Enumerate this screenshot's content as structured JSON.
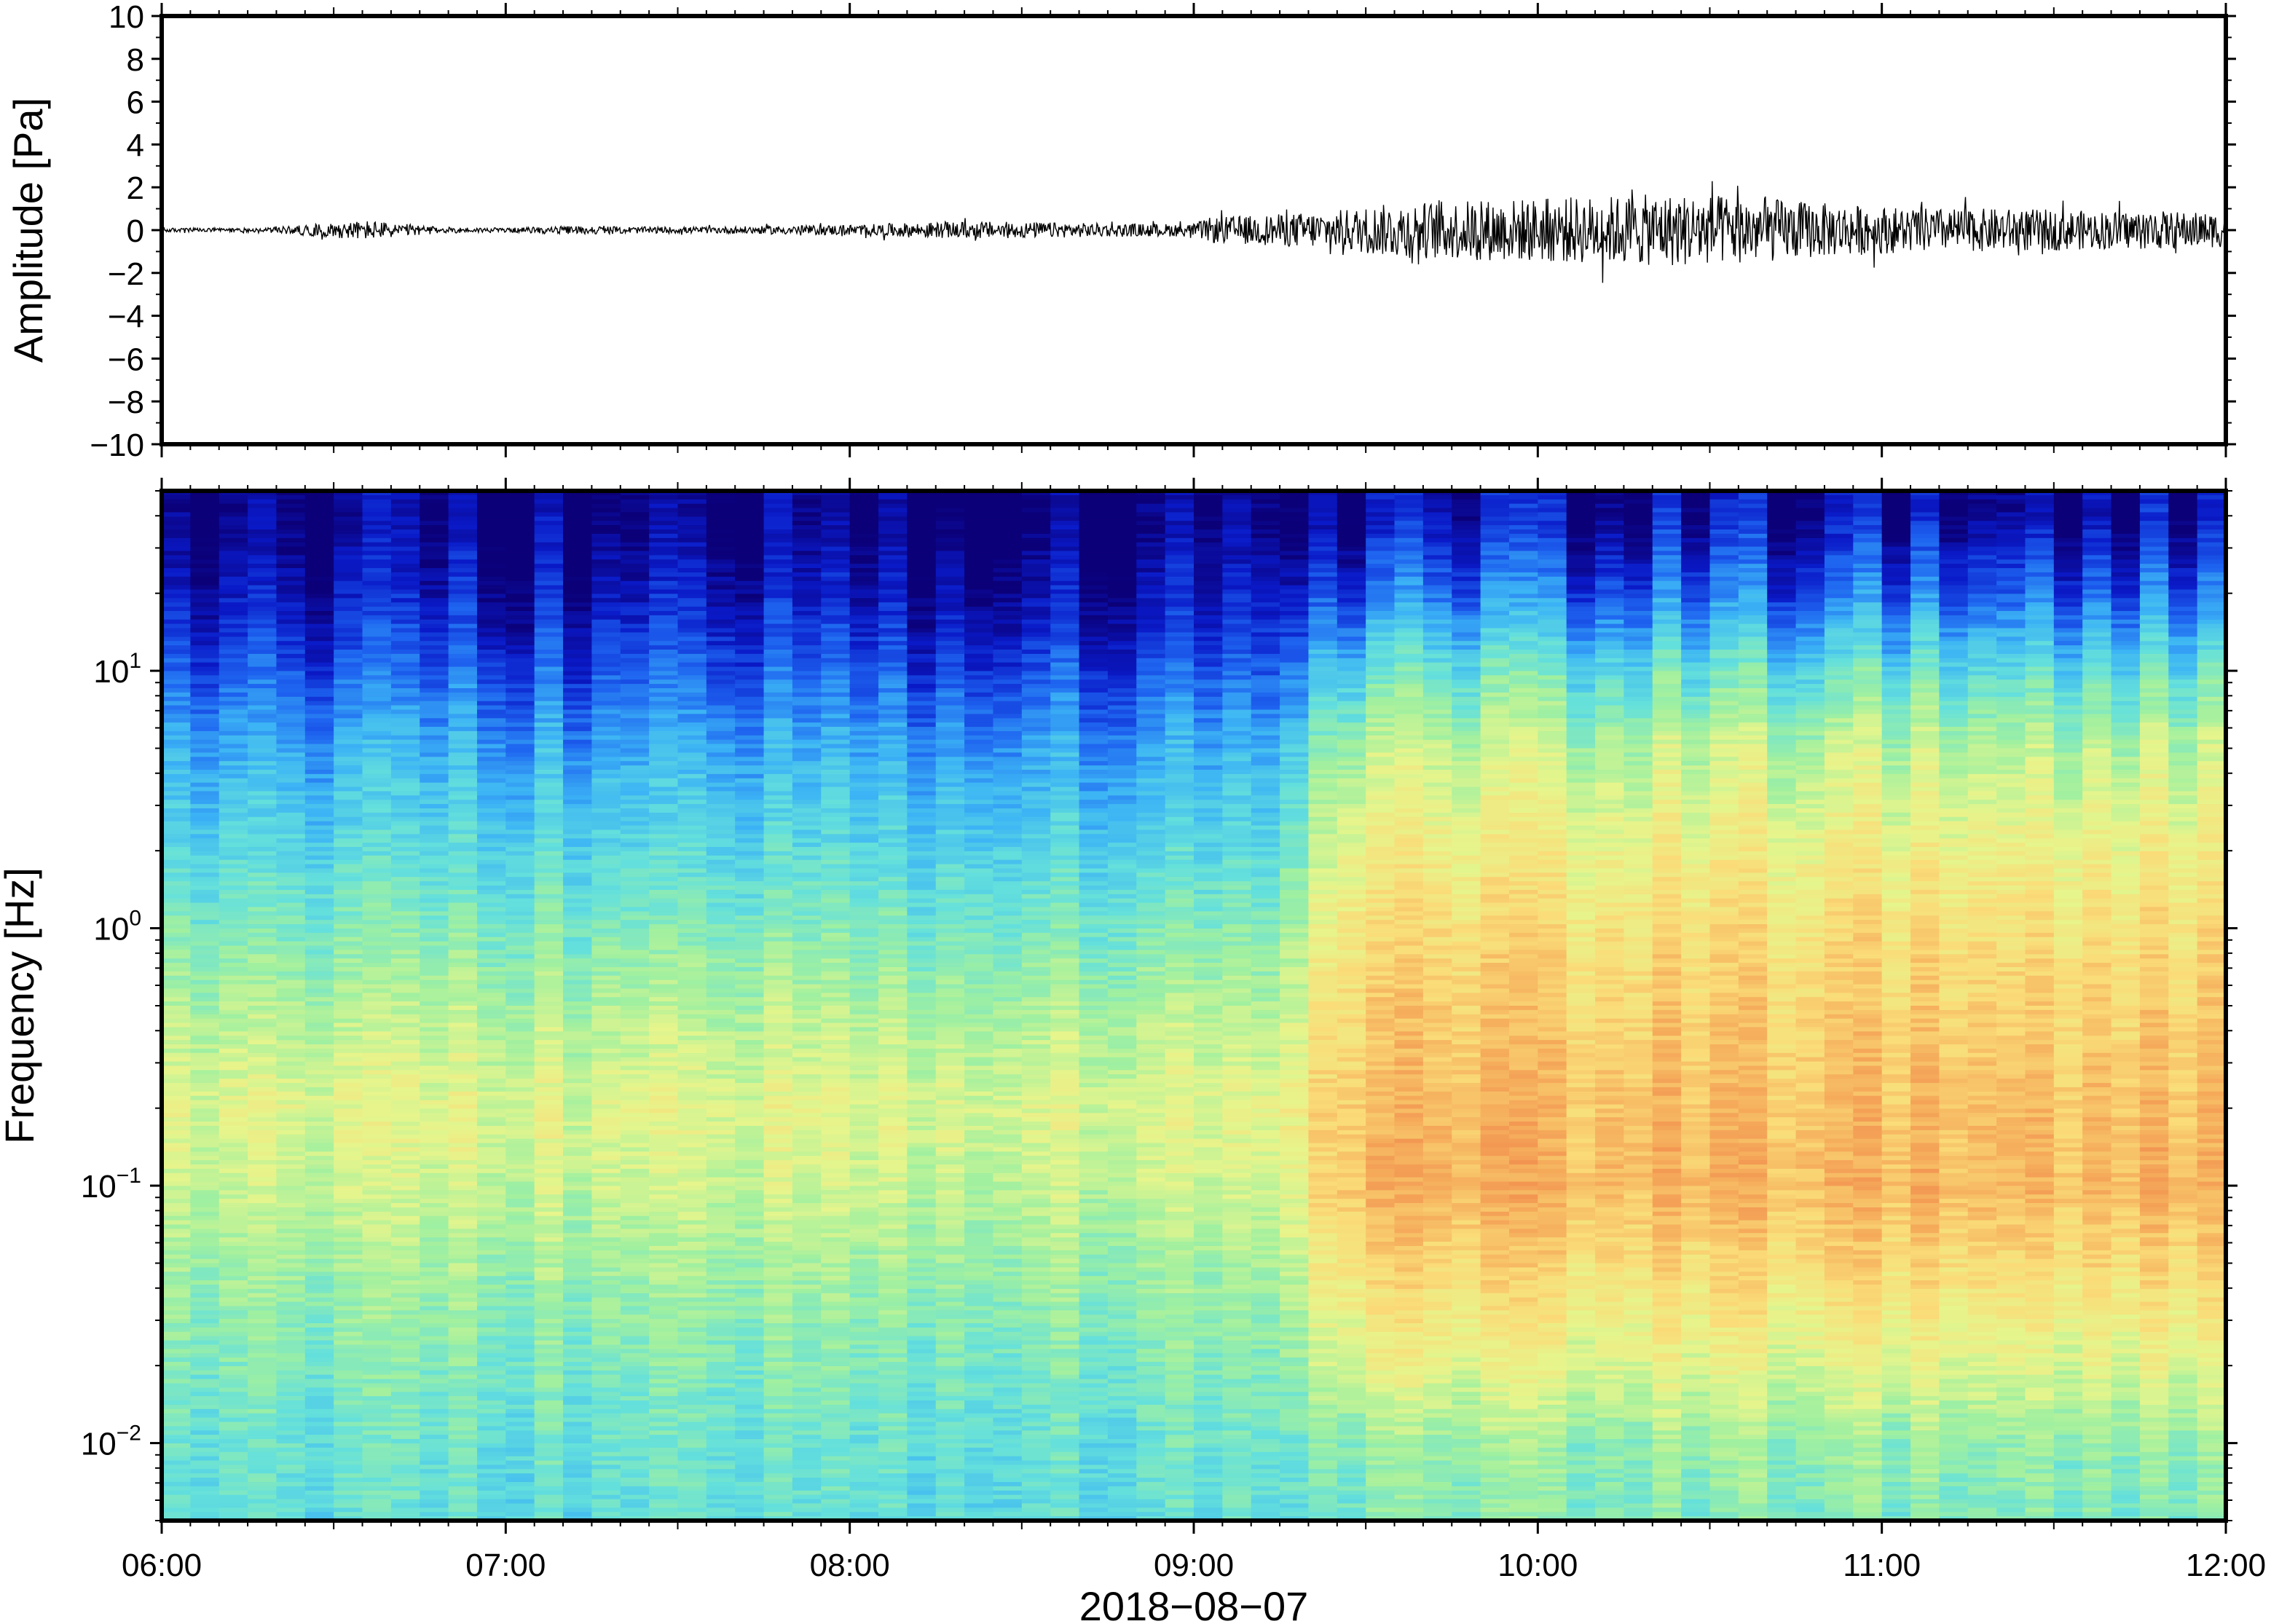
{
  "chart_data": [
    {
      "type": "line",
      "panel": "waveform",
      "ylabel": "Amplitude [Pa]",
      "ylim": [
        -10,
        10
      ],
      "yticks": [
        10,
        8,
        6,
        4,
        2,
        0,
        -2,
        -4,
        -6,
        -8,
        -10
      ],
      "ytick_labels": [
        "10",
        "8",
        "6",
        "4",
        "2",
        "0",
        "−2",
        "−4",
        "−6",
        "−8",
        "−10"
      ],
      "x_range": [
        "06:00",
        "12:00"
      ],
      "series": [
        {
          "color": "#000000",
          "envelope_time_hours": [
            6.0,
            6.3,
            6.5,
            6.6,
            6.8,
            7.0,
            7.2,
            7.4,
            7.6,
            7.8,
            8.0,
            8.2,
            8.4,
            8.6,
            8.8,
            9.0,
            9.05,
            9.2,
            9.4,
            9.6,
            9.8,
            10.0,
            10.2,
            10.4,
            10.6,
            10.8,
            11.0,
            11.2,
            11.4,
            11.6,
            11.8,
            12.0
          ],
          "envelope_amplitude_pa": [
            0.1,
            0.1,
            0.35,
            0.45,
            0.15,
            0.1,
            0.2,
            0.15,
            0.15,
            0.2,
            0.25,
            0.35,
            0.4,
            0.35,
            0.3,
            0.3,
            0.6,
            0.7,
            0.9,
            1.3,
            1.4,
            1.5,
            1.6,
            1.7,
            1.6,
            1.3,
            1.1,
            1.0,
            1.0,
            0.9,
            0.9,
            0.8
          ]
        }
      ]
    },
    {
      "type": "heatmap",
      "panel": "spectrogram",
      "ylabel": "Frequency [Hz]",
      "xlabel": "2018−08−07",
      "yscale": "log",
      "ylim": [
        0.005,
        50
      ],
      "yticks": [
        10,
        1,
        0.1,
        0.01
      ],
      "ytick_labels": [
        {
          "base": "10",
          "exp": "1"
        },
        {
          "base": "10",
          "exp": "0"
        },
        {
          "base": "10",
          "exp": "−1"
        },
        {
          "base": "10",
          "exp": "−2"
        }
      ],
      "x_range": [
        "06:00",
        "12:00"
      ],
      "xticks": [
        "06:00",
        "07:00",
        "08:00",
        "09:00",
        "10:00",
        "11:00",
        "12:00"
      ],
      "colormap": [
        "#0b0078",
        "#0a1ac8",
        "#1e64f0",
        "#3cb4f5",
        "#64e0dc",
        "#a0f0a0",
        "#e6f58c",
        "#fadc78",
        "#f5aa5a",
        "#ee7846"
      ],
      "intensity_profile": {
        "frequency_hz": [
          40,
          20,
          10,
          5,
          2,
          1,
          0.5,
          0.2,
          0.1,
          0.05,
          0.02,
          0.01,
          0.005
        ],
        "before_09:20": [
          0.0,
          0.08,
          0.2,
          0.32,
          0.42,
          0.5,
          0.58,
          0.66,
          0.62,
          0.56,
          0.5,
          0.46,
          0.44
        ],
        "after_09:20": [
          0.05,
          0.22,
          0.44,
          0.6,
          0.7,
          0.76,
          0.8,
          0.84,
          0.86,
          0.78,
          0.66,
          0.54,
          0.5
        ]
      }
    }
  ]
}
